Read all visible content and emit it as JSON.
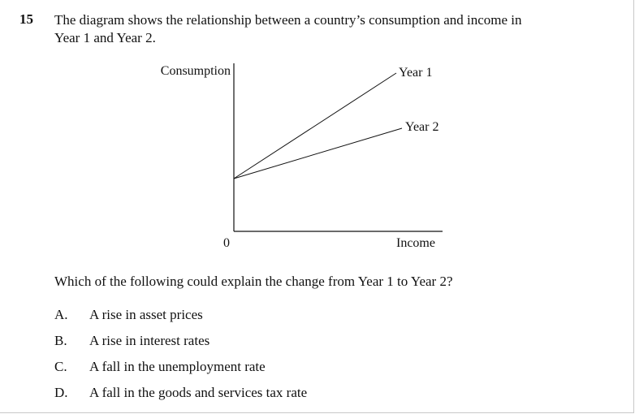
{
  "question": {
    "number": "15",
    "stem_line1": "The diagram shows the relationship between a country’s consumption and income in",
    "stem_line2": "Year 1 and Year 2."
  },
  "diagram": {
    "y_axis_label": "Consumption",
    "x_axis_label": "Income",
    "origin_label": "0",
    "line_year1_label": "Year 1",
    "line_year2_label": "Year 2"
  },
  "prompt": "Which of the following could explain the change from Year 1 to Year 2?",
  "options": [
    {
      "letter": "A.",
      "text": "A rise in asset prices"
    },
    {
      "letter": "B.",
      "text": "A rise in interest rates"
    },
    {
      "letter": "C.",
      "text": "A fall in the unemployment rate"
    },
    {
      "letter": "D.",
      "text": "A fall in the goods and services tax rate"
    }
  ]
}
